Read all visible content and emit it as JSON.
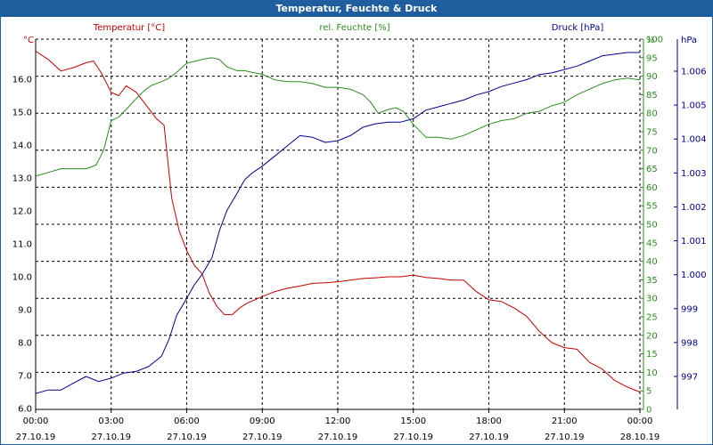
{
  "window": {
    "title": "Temperatur, Feuchte & Druck"
  },
  "colors": {
    "temperature": "#c00000",
    "humidity": "#2e8b22",
    "pressure": "#00008b",
    "title_bar": "#1f5e9e",
    "grid": "#000000"
  },
  "chart_data": {
    "type": "line",
    "title": "Temperatur, Feuchte & Druck",
    "grid": true,
    "x_ticks": [
      {
        "time": "00:00",
        "date": "27.10.19"
      },
      {
        "time": "03:00",
        "date": "27.10.19"
      },
      {
        "time": "06:00",
        "date": "27.10.19"
      },
      {
        "time": "09:00",
        "date": "27.10.19"
      },
      {
        "time": "12:00",
        "date": "27.10.19"
      },
      {
        "time": "15:00",
        "date": "27.10.19"
      },
      {
        "time": "18:00",
        "date": "27.10.19"
      },
      {
        "time": "21:00",
        "date": "27.10.19"
      },
      {
        "time": "00:00",
        "date": "28.10.19"
      }
    ],
    "axes": {
      "temperature": {
        "label": "Temperatur [°C]",
        "unit": "°C",
        "ylim": [
          6.0,
          17.3
        ],
        "ticks": [
          "6.0",
          "7.0",
          "8.0",
          "9.0",
          "10.0",
          "11.0",
          "12.0",
          "13.0",
          "14.0",
          "15.0",
          "16.0"
        ]
      },
      "humidity": {
        "label": "rel. Feuchte [%]",
        "unit": "%",
        "ylim": [
          0,
          100
        ],
        "ticks": [
          "0",
          "5",
          "10",
          "15",
          "20",
          "25",
          "30",
          "35",
          "40",
          "45",
          "50",
          "55",
          "60",
          "65",
          "70",
          "75",
          "80",
          "85",
          "90",
          "95",
          "100"
        ]
      },
      "pressure": {
        "label": "Druck [hPa]",
        "unit": "hPa",
        "ylim": [
          996.1,
          1007.0
        ],
        "ticks": [
          "997",
          "998",
          "999",
          "1.000",
          "1.001",
          "1.002",
          "1.003",
          "1.004",
          "1.005",
          "1.006"
        ]
      }
    },
    "series": [
      {
        "name": "Temperatur [°C]",
        "axis": "temperature",
        "x": [
          0,
          0.5,
          1,
          1.5,
          2,
          2.3,
          2.6,
          3,
          3.3,
          3.6,
          4,
          4.4,
          4.8,
          5.1,
          5.4,
          5.7,
          6,
          6.3,
          6.6,
          6.9,
          7.2,
          7.5,
          7.8,
          8.1,
          8.4,
          8.7,
          9,
          9.5,
          10,
          10.5,
          11,
          11.5,
          12,
          12.5,
          13,
          13.5,
          14,
          14.5,
          15,
          15.5,
          16,
          16.5,
          17,
          17.5,
          18,
          18.5,
          19,
          19.5,
          20,
          20.5,
          21,
          21.5,
          22,
          22.5,
          23,
          23.5,
          24
        ],
        "values": [
          16.85,
          16.6,
          16.25,
          16.35,
          16.5,
          16.55,
          16.2,
          15.6,
          15.5,
          15.8,
          15.6,
          15.2,
          14.8,
          14.6,
          12.4,
          11.4,
          10.8,
          10.35,
          10.1,
          9.5,
          9.1,
          8.85,
          8.85,
          9.05,
          9.2,
          9.3,
          9.4,
          9.55,
          9.65,
          9.72,
          9.8,
          9.82,
          9.85,
          9.9,
          9.95,
          9.97,
          10.0,
          10.0,
          10.05,
          9.98,
          9.95,
          9.9,
          9.9,
          9.55,
          9.3,
          9.25,
          9.05,
          8.8,
          8.35,
          8.0,
          7.85,
          7.8,
          7.4,
          7.2,
          6.85,
          6.65,
          6.5
        ]
      },
      {
        "name": "rel. Feuchte [%]",
        "axis": "humidity",
        "x": [
          0,
          0.5,
          1,
          1.5,
          2,
          2.4,
          2.7,
          3,
          3.3,
          3.6,
          4,
          4.3,
          4.6,
          5,
          5.3,
          5.6,
          6,
          6.3,
          6.6,
          7,
          7.3,
          7.6,
          8,
          8.3,
          8.6,
          9,
          9.5,
          10,
          10.5,
          11,
          11.5,
          12,
          12.5,
          13,
          13.3,
          13.6,
          14,
          14.3,
          14.6,
          15,
          15.5,
          16,
          16.5,
          17,
          17.5,
          18,
          18.5,
          19,
          19.5,
          20,
          20.5,
          21,
          21.5,
          22,
          22.5,
          23,
          23.5,
          24
        ],
        "values": [
          63,
          64,
          65,
          65,
          65,
          66,
          70,
          78,
          79,
          81,
          84,
          86,
          87.5,
          88.5,
          89.5,
          91,
          93.5,
          94,
          94.5,
          95,
          94.5,
          92.5,
          91.5,
          91.5,
          91,
          90.5,
          89,
          88.5,
          88.5,
          88,
          87,
          87,
          86.5,
          85,
          83,
          80,
          81,
          81.5,
          80.5,
          77,
          73.5,
          73.5,
          73,
          74,
          75.5,
          77,
          78,
          78.5,
          80,
          80.5,
          82,
          83,
          85,
          86.5,
          88,
          89,
          89.5,
          89
        ]
      },
      {
        "name": "Druck [hPa]",
        "axis": "pressure",
        "x": [
          0,
          0.5,
          1,
          1.5,
          2,
          2.5,
          3,
          3.5,
          4,
          4.5,
          5,
          5.3,
          5.6,
          6,
          6.3,
          6.6,
          7,
          7.3,
          7.6,
          8,
          8.3,
          8.6,
          9,
          9.5,
          10,
          10.5,
          11,
          11.5,
          12,
          12.5,
          13,
          13.5,
          14,
          14.5,
          15,
          15.5,
          16,
          16.5,
          17,
          17.5,
          18,
          18.5,
          19,
          19.5,
          20,
          20.5,
          21,
          21.5,
          22,
          22.5,
          23,
          23.5,
          24
        ],
        "values": [
          996.5,
          996.6,
          996.6,
          996.8,
          997.0,
          996.85,
          996.95,
          997.1,
          997.15,
          997.3,
          997.6,
          998.1,
          998.8,
          999.3,
          999.7,
          1000.0,
          1000.5,
          1001.3,
          1001.9,
          1002.4,
          1002.8,
          1003.0,
          1003.2,
          1003.5,
          1003.8,
          1004.1,
          1004.05,
          1003.9,
          1003.95,
          1004.1,
          1004.35,
          1004.45,
          1004.5,
          1004.5,
          1004.6,
          1004.85,
          1004.95,
          1005.05,
          1005.15,
          1005.3,
          1005.4,
          1005.55,
          1005.65,
          1005.75,
          1005.9,
          1005.95,
          1006.05,
          1006.15,
          1006.3,
          1006.45,
          1006.5,
          1006.55,
          1006.55
        ]
      }
    ]
  }
}
